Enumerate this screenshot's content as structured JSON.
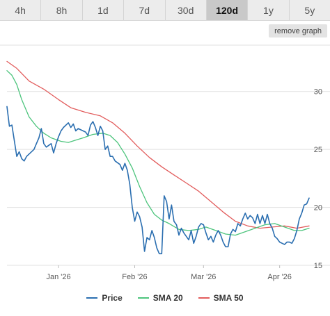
{
  "range_tabs": {
    "items": [
      "4h",
      "8h",
      "1d",
      "7d",
      "30d",
      "120d",
      "1y",
      "5y"
    ],
    "active": "120d"
  },
  "remove_graph_label": "remove graph",
  "legend": {
    "price": "Price",
    "sma20": "SMA 20",
    "sma50": "SMA 50"
  },
  "colors": {
    "price": "#2a6eb0",
    "sma20": "#4cc47c",
    "sma50": "#e25c5c",
    "grid": "#e0e0e0",
    "active_tab": "#c9c9c9",
    "tab_bg": "#ececec"
  },
  "chart_data": {
    "type": "line",
    "title": "",
    "xlabel": "",
    "ylabel": "",
    "x_start": "2025-12-11",
    "x_end": "2026-04-13",
    "x_ticks": [
      {
        "label": "Jan '26",
        "date": "2026-01-01"
      },
      {
        "label": "Feb '26",
        "date": "2026-02-01"
      },
      {
        "label": "Mar '26",
        "date": "2026-03-01"
      },
      {
        "label": "Apr '26",
        "date": "2026-04-01"
      }
    ],
    "y_ticks": [
      15,
      20,
      25,
      30
    ],
    "ylim": [
      15,
      34
    ],
    "y_axis_side": "right",
    "grid": "horizontal",
    "legend_position": "bottom",
    "series": [
      {
        "name": "Price",
        "color": "#2a6eb0",
        "points": [
          [
            "2025-12-11",
            28.7
          ],
          [
            "2025-12-12",
            27.0
          ],
          [
            "2025-12-13",
            27.1
          ],
          [
            "2025-12-15",
            24.4
          ],
          [
            "2025-12-16",
            24.8
          ],
          [
            "2025-12-17",
            24.2
          ],
          [
            "2025-12-18",
            24.0
          ],
          [
            "2025-12-19",
            24.4
          ],
          [
            "2025-12-22",
            25.0
          ],
          [
            "2025-12-23",
            25.5
          ],
          [
            "2025-12-24",
            26.0
          ],
          [
            "2025-12-25",
            26.8
          ],
          [
            "2025-12-26",
            25.5
          ],
          [
            "2025-12-27",
            25.2
          ],
          [
            "2025-12-29",
            25.5
          ],
          [
            "2025-12-30",
            24.7
          ],
          [
            "2025-12-31",
            25.5
          ],
          [
            "2026-01-01",
            26.1
          ],
          [
            "2026-01-02",
            26.6
          ],
          [
            "2026-01-03",
            26.9
          ],
          [
            "2026-01-05",
            27.3
          ],
          [
            "2026-01-06",
            26.9
          ],
          [
            "2026-01-07",
            27.2
          ],
          [
            "2026-01-08",
            26.6
          ],
          [
            "2026-01-09",
            26.8
          ],
          [
            "2026-01-12",
            26.5
          ],
          [
            "2026-01-13",
            26.2
          ],
          [
            "2026-01-14",
            27.1
          ],
          [
            "2026-01-15",
            27.4
          ],
          [
            "2026-01-16",
            26.9
          ],
          [
            "2026-01-17",
            26.2
          ],
          [
            "2026-01-18",
            27.0
          ],
          [
            "2026-01-19",
            26.6
          ],
          [
            "2026-01-20",
            25.0
          ],
          [
            "2026-01-21",
            25.3
          ],
          [
            "2026-01-22",
            24.4
          ],
          [
            "2026-01-23",
            24.4
          ],
          [
            "2026-01-24",
            24.0
          ],
          [
            "2026-01-26",
            23.7
          ],
          [
            "2026-01-27",
            23.2
          ],
          [
            "2026-01-28",
            23.8
          ],
          [
            "2026-01-29",
            23.2
          ],
          [
            "2026-01-30",
            22.0
          ],
          [
            "2026-01-31",
            20.0
          ],
          [
            "2026-02-01",
            18.8
          ],
          [
            "2026-02-02",
            19.6
          ],
          [
            "2026-02-03",
            19.2
          ],
          [
            "2026-02-04",
            18.3
          ],
          [
            "2026-02-05",
            16.2
          ],
          [
            "2026-02-06",
            17.4
          ],
          [
            "2026-02-07",
            17.2
          ],
          [
            "2026-02-08",
            18.0
          ],
          [
            "2026-02-09",
            17.4
          ],
          [
            "2026-02-10",
            16.5
          ],
          [
            "2026-02-11",
            16.0
          ],
          [
            "2026-02-12",
            16.0
          ],
          [
            "2026-02-13",
            21.0
          ],
          [
            "2026-02-14",
            20.5
          ],
          [
            "2026-02-15",
            19.0
          ],
          [
            "2026-02-16",
            20.2
          ],
          [
            "2026-02-17",
            18.8
          ],
          [
            "2026-02-18",
            18.5
          ],
          [
            "2026-02-19",
            17.6
          ],
          [
            "2026-02-20",
            18.2
          ],
          [
            "2026-02-21",
            17.8
          ],
          [
            "2026-02-23",
            17.2
          ],
          [
            "2026-02-24",
            18.0
          ],
          [
            "2026-02-25",
            16.9
          ],
          [
            "2026-02-26",
            17.5
          ],
          [
            "2026-02-27",
            18.3
          ],
          [
            "2026-02-28",
            18.6
          ],
          [
            "2026-03-01",
            18.5
          ],
          [
            "2026-03-02",
            17.8
          ],
          [
            "2026-03-03",
            17.2
          ],
          [
            "2026-03-04",
            17.5
          ],
          [
            "2026-03-05",
            17.0
          ],
          [
            "2026-03-06",
            17.6
          ],
          [
            "2026-03-07",
            18.0
          ],
          [
            "2026-03-08",
            17.6
          ],
          [
            "2026-03-09",
            17.0
          ],
          [
            "2026-03-10",
            16.6
          ],
          [
            "2026-03-11",
            16.6
          ],
          [
            "2026-03-12",
            17.7
          ],
          [
            "2026-03-13",
            18.1
          ],
          [
            "2026-03-14",
            17.9
          ],
          [
            "2026-03-15",
            18.6
          ],
          [
            "2026-03-16",
            18.4
          ],
          [
            "2026-03-17",
            19.0
          ],
          [
            "2026-03-18",
            19.5
          ],
          [
            "2026-03-19",
            19.0
          ],
          [
            "2026-03-20",
            19.3
          ],
          [
            "2026-03-21",
            19.1
          ],
          [
            "2026-03-22",
            18.6
          ],
          [
            "2026-03-23",
            19.4
          ],
          [
            "2026-03-24",
            18.6
          ],
          [
            "2026-03-25",
            19.3
          ],
          [
            "2026-03-26",
            18.6
          ],
          [
            "2026-03-27",
            19.4
          ],
          [
            "2026-03-28",
            18.6
          ],
          [
            "2026-03-29",
            18.2
          ],
          [
            "2026-03-30",
            17.5
          ],
          [
            "2026-03-31",
            17.3
          ],
          [
            "2026-04-01",
            17.0
          ],
          [
            "2026-04-02",
            16.9
          ],
          [
            "2026-04-03",
            16.8
          ],
          [
            "2026-04-04",
            17.0
          ],
          [
            "2026-04-05",
            17.0
          ],
          [
            "2026-04-06",
            16.9
          ],
          [
            "2026-04-07",
            17.3
          ],
          [
            "2026-04-08",
            18.0
          ],
          [
            "2026-04-09",
            19.0
          ],
          [
            "2026-04-10",
            19.5
          ],
          [
            "2026-04-11",
            20.2
          ],
          [
            "2026-04-12",
            20.3
          ],
          [
            "2026-04-13",
            20.8
          ]
        ]
      },
      {
        "name": "SMA 20",
        "color": "#4cc47c",
        "points": [
          [
            "2025-12-11",
            31.8
          ],
          [
            "2025-12-13",
            31.4
          ],
          [
            "2025-12-15",
            30.6
          ],
          [
            "2025-12-17",
            29.3
          ],
          [
            "2025-12-20",
            27.8
          ],
          [
            "2025-12-23",
            27.0
          ],
          [
            "2025-12-26",
            26.4
          ],
          [
            "2025-12-29",
            26.0
          ],
          [
            "2026-01-02",
            25.7
          ],
          [
            "2026-01-05",
            25.6
          ],
          [
            "2026-01-08",
            25.8
          ],
          [
            "2026-01-11",
            26.0
          ],
          [
            "2026-01-15",
            26.3
          ],
          [
            "2026-01-19",
            26.4
          ],
          [
            "2026-01-22",
            26.2
          ],
          [
            "2026-01-25",
            25.6
          ],
          [
            "2026-01-28",
            24.6
          ],
          [
            "2026-01-31",
            23.4
          ],
          [
            "2026-02-03",
            21.8
          ],
          [
            "2026-02-06",
            20.4
          ],
          [
            "2026-02-09",
            19.4
          ],
          [
            "2026-02-12",
            18.9
          ],
          [
            "2026-02-15",
            18.6
          ],
          [
            "2026-02-19",
            18.1
          ],
          [
            "2026-02-23",
            18.0
          ],
          [
            "2026-02-27",
            18.1
          ],
          [
            "2026-03-02",
            18.3
          ],
          [
            "2026-03-06",
            18.0
          ],
          [
            "2026-03-10",
            17.7
          ],
          [
            "2026-03-14",
            17.6
          ],
          [
            "2026-03-18",
            17.9
          ],
          [
            "2026-03-22",
            18.2
          ],
          [
            "2026-03-26",
            18.5
          ],
          [
            "2026-03-30",
            18.6
          ],
          [
            "2026-04-03",
            18.3
          ],
          [
            "2026-04-07",
            18.0
          ],
          [
            "2026-04-10",
            18.0
          ],
          [
            "2026-04-13",
            18.2
          ]
        ]
      },
      {
        "name": "SMA 50",
        "color": "#e25c5c",
        "points": [
          [
            "2025-12-11",
            32.6
          ],
          [
            "2025-12-15",
            32.0
          ],
          [
            "2025-12-20",
            30.9
          ],
          [
            "2025-12-26",
            30.2
          ],
          [
            "2026-01-01",
            29.3
          ],
          [
            "2026-01-06",
            28.6
          ],
          [
            "2026-01-12",
            28.2
          ],
          [
            "2026-01-18",
            27.9
          ],
          [
            "2026-01-23",
            27.3
          ],
          [
            "2026-01-28",
            26.4
          ],
          [
            "2026-02-02",
            25.3
          ],
          [
            "2026-02-07",
            24.3
          ],
          [
            "2026-02-12",
            23.5
          ],
          [
            "2026-02-17",
            22.8
          ],
          [
            "2026-02-22",
            22.1
          ],
          [
            "2026-02-27",
            21.4
          ],
          [
            "2026-03-04",
            20.5
          ],
          [
            "2026-03-09",
            19.6
          ],
          [
            "2026-03-14",
            18.8
          ],
          [
            "2026-03-19",
            18.4
          ],
          [
            "2026-03-24",
            18.2
          ],
          [
            "2026-03-29",
            18.3
          ],
          [
            "2026-04-03",
            18.4
          ],
          [
            "2026-04-08",
            18.2
          ],
          [
            "2026-04-13",
            18.4
          ]
        ]
      }
    ]
  }
}
